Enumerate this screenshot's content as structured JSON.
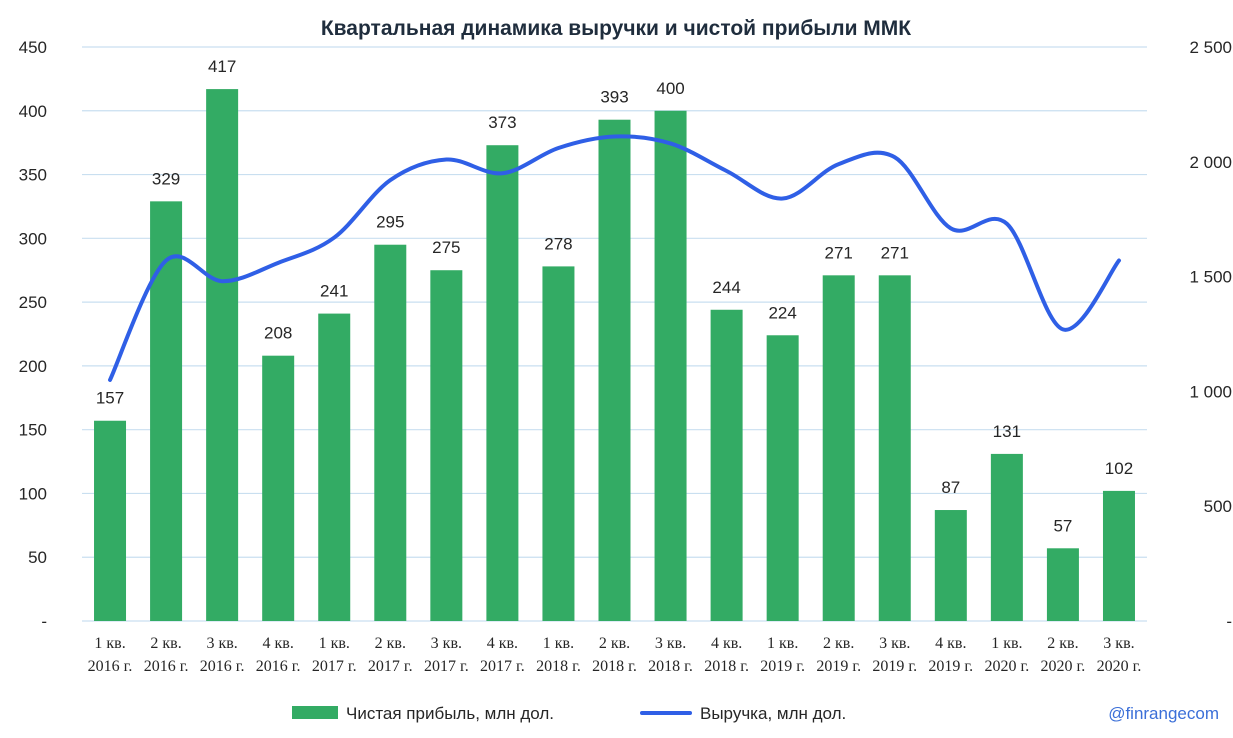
{
  "chart_data": {
    "type": "bar",
    "title": "Квартальная динамика выручки и чистой прибыли ММК",
    "categories": [
      [
        "1 кв.",
        "2016 г."
      ],
      [
        "2 кв.",
        "2016 г."
      ],
      [
        "3 кв.",
        "2016 г."
      ],
      [
        "4 кв.",
        "2016 г."
      ],
      [
        "1 кв.",
        "2017 г."
      ],
      [
        "2 кв.",
        "2017 г."
      ],
      [
        "3 кв.",
        "2017 г."
      ],
      [
        "4 кв.",
        "2017 г."
      ],
      [
        "1 кв.",
        "2018 г."
      ],
      [
        "2 кв.",
        "2018 г."
      ],
      [
        "3 кв.",
        "2018 г."
      ],
      [
        "4 кв.",
        "2018 г."
      ],
      [
        "1 кв.",
        "2019 г."
      ],
      [
        "2 кв.",
        "2019 г."
      ],
      [
        "3 кв.",
        "2019 г."
      ],
      [
        "4 кв.",
        "2019 г."
      ],
      [
        "1 кв.",
        "2020 г."
      ],
      [
        "2 кв.",
        "2020 г."
      ],
      [
        "3 кв.",
        "2020 г."
      ]
    ],
    "series": [
      {
        "name": "Чистая прибыль, млн дол.",
        "type": "bar",
        "axis": "left",
        "color": "#33ab64",
        "values": [
          157,
          329,
          417,
          208,
          241,
          295,
          275,
          373,
          278,
          393,
          400,
          244,
          224,
          271,
          271,
          87,
          131,
          57,
          102
        ],
        "labels": [
          "157",
          "329",
          "417",
          "208",
          "241",
          "295",
          "275",
          "373",
          "278",
          "393",
          "400",
          "244",
          "224",
          "271",
          "271",
          "87",
          "131",
          "57",
          "102"
        ]
      },
      {
        "name": "Выручка, млн дол.",
        "type": "line",
        "axis": "right",
        "color": "#2f5fe6",
        "values": [
          1050,
          1570,
          1480,
          1560,
          1670,
          1920,
          2010,
          1950,
          2060,
          2110,
          2080,
          1960,
          1840,
          1990,
          2020,
          1710,
          1730,
          1270,
          1570
        ]
      }
    ],
    "yleft": {
      "range": [
        0,
        450
      ],
      "ticks": [
        {
          "value": 0,
          "label": "-"
        },
        {
          "value": 50,
          "label": "50"
        },
        {
          "value": 100,
          "label": "100"
        },
        {
          "value": 150,
          "label": "150"
        },
        {
          "value": 200,
          "label": "200"
        },
        {
          "value": 250,
          "label": "250"
        },
        {
          "value": 300,
          "label": "300"
        },
        {
          "value": 350,
          "label": "350"
        },
        {
          "value": 400,
          "label": "400"
        },
        {
          "value": 450,
          "label": "450"
        }
      ]
    },
    "yright": {
      "range": [
        0,
        2500
      ],
      "ticks": [
        {
          "value": 0,
          "label": "-"
        },
        {
          "value": 500,
          "label": "500"
        },
        {
          "value": 1000,
          "label": "1 000"
        },
        {
          "value": 1500,
          "label": "1 500"
        },
        {
          "value": 2000,
          "label": "2 000"
        },
        {
          "value": 2500,
          "label": "2 500"
        }
      ]
    },
    "grid": true,
    "legend_position": "bottom"
  },
  "watermark": "@finrangecom",
  "colors": {
    "bar": "#33ab64",
    "line": "#2f5fe6",
    "grid": "#c9dff0",
    "watermark": "#3b6fd8"
  }
}
